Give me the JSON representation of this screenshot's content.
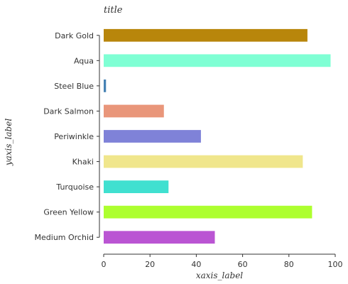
{
  "chart_data": {
    "type": "bar",
    "orientation": "horizontal",
    "title": "title",
    "xlabel": "xaxis_label",
    "ylabel": "yaxis_label",
    "xlim": [
      0,
      100
    ],
    "xticks": [
      0,
      20,
      40,
      60,
      80,
      100
    ],
    "grid": false,
    "categories": [
      "Medium Orchid",
      "Green Yellow",
      "Turquoise",
      "Khaki",
      "Periwinkle",
      "Dark Salmon",
      "Steel Blue",
      "Aqua",
      "Dark Gold"
    ],
    "values": [
      48,
      90,
      28,
      86,
      42,
      26,
      1,
      98,
      88
    ],
    "colors": [
      "#BA55D3",
      "#ADFF2F",
      "#40E0D0",
      "#F0E68C",
      "#7F82D8",
      "#E9967A",
      "#4682B4",
      "#7FFFD4",
      "#B8860B"
    ]
  }
}
